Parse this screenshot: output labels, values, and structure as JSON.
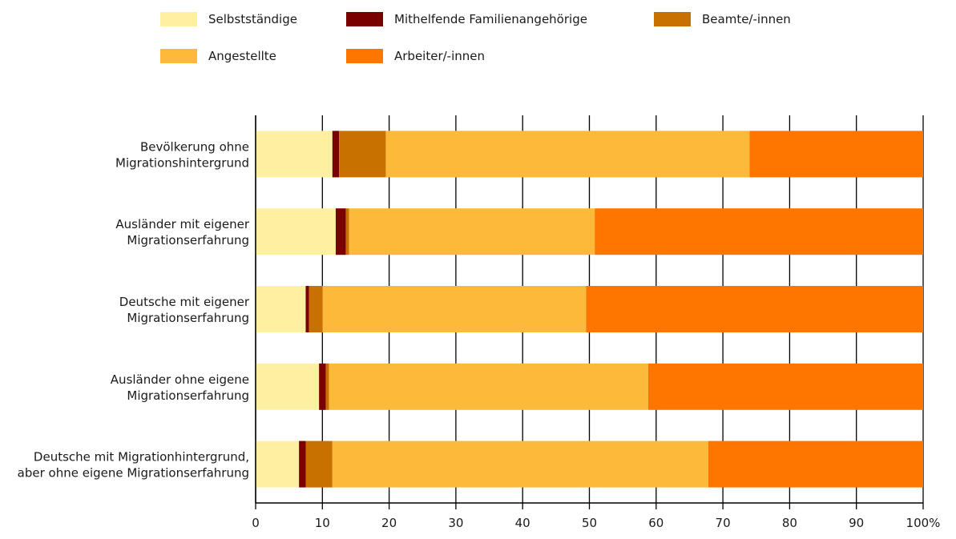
{
  "colors": {
    "Selbstständige": "#fdf0a0",
    "Mithelfende Familienangehörige": "#7a0000",
    "Beamte/-innen": "#c97100",
    "Angestellte": "#fdb93a",
    "Arbeiter/-innen": "#fe7600"
  },
  "legend": [
    {
      "name": "Selbstständige",
      "color_key": "Selbstständige"
    },
    {
      "name": "Mithelfende Familienangehörige",
      "color_key": "Mithelfende Familienangehörige"
    },
    {
      "name": "Beamte/-innen",
      "color_key": "Beamte/-innen"
    },
    {
      "name": "Angestellte",
      "color_key": "Angestellte"
    },
    {
      "name": "Arbeiter/-innen",
      "color_key": "Arbeiter/-innen"
    }
  ],
  "chart_data": {
    "type": "bar",
    "orientation": "horizontal",
    "stacked": true,
    "categories": [
      [
        "Bevölkerung ohne",
        "Migrationshintergrund"
      ],
      [
        "Ausländer mit eigener",
        "Migrationserfahrung"
      ],
      [
        "Deutsche mit eigener",
        "Migrationserfahrung"
      ],
      [
        "Ausländer ohne eigene",
        "Migrationserfahrung"
      ],
      [
        "Deutsche mit Migrationhintergrund,",
        "aber ohne eigene Migrationserfahrung"
      ]
    ],
    "series": [
      {
        "name": "Selbstständige",
        "values": [
          11.5,
          12.0,
          7.5,
          9.5,
          6.5
        ]
      },
      {
        "name": "Mithelfende Familienangehörige",
        "values": [
          1.0,
          1.5,
          0.5,
          1.0,
          1.0
        ]
      },
      {
        "name": "Beamte/-innen",
        "values": [
          7.0,
          0.5,
          2.0,
          0.5,
          4.0
        ]
      },
      {
        "name": "Angestellte",
        "values": [
          54.5,
          36.8,
          39.5,
          47.8,
          56.3
        ]
      },
      {
        "name": "Arbeiter/-innen",
        "values": [
          26.0,
          49.2,
          50.5,
          41.2,
          32.2
        ]
      }
    ],
    "xlim": [
      0,
      100
    ],
    "xticks": [
      "0",
      "10",
      "20",
      "30",
      "40",
      "50",
      "60",
      "70",
      "80",
      "90",
      "100%"
    ],
    "grid": "vertical",
    "legend_position": "top"
  }
}
